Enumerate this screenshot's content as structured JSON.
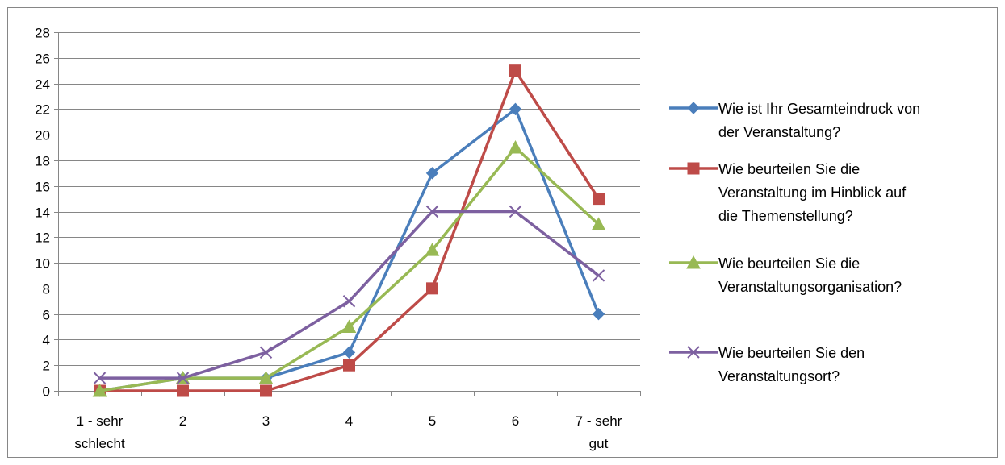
{
  "chart_data": {
    "type": "line",
    "categories": [
      "1 - sehr schlecht",
      "2",
      "3",
      "4",
      "5",
      "6",
      "7 - sehr gut"
    ],
    "category_lines": [
      [
        "1 - sehr",
        "schlecht"
      ],
      [
        "2"
      ],
      [
        "3"
      ],
      [
        "4"
      ],
      [
        "5"
      ],
      [
        "6"
      ],
      [
        "7 - sehr",
        "gut"
      ]
    ],
    "ylim": [
      0,
      28
    ],
    "ytick_step": 2,
    "grid": true,
    "legend_position": "right",
    "series": [
      {
        "name": "Wie ist Ihr Gesamteindruck von der Veranstaltung?",
        "name_lines": [
          "Wie ist Ihr Gesamteindruck von",
          "der Veranstaltung?"
        ],
        "values": [
          0,
          1,
          1,
          3,
          17,
          22,
          6
        ],
        "color": "#4a7ebb",
        "marker": "diamond"
      },
      {
        "name": "Wie beurteilen Sie die Veranstaltung im Hinblick auf die Themenstellung?",
        "name_lines": [
          "Wie beurteilen Sie die",
          "Veranstaltung im Hinblick auf",
          "die Themenstellung?"
        ],
        "values": [
          0,
          0,
          0,
          2,
          8,
          25,
          15
        ],
        "color": "#be4b48",
        "marker": "square"
      },
      {
        "name": "Wie beurteilen Sie die Veranstaltungsorganisation?",
        "name_lines": [
          "Wie beurteilen Sie die",
          "Veranstaltungsorganisation?"
        ],
        "values": [
          0,
          1,
          1,
          5,
          11,
          19,
          13
        ],
        "color": "#98b954",
        "marker": "triangle"
      },
      {
        "name": "Wie beurteilen Sie den Veranstaltungsort?",
        "name_lines": [
          "Wie beurteilen Sie den",
          "Veranstaltungsort?"
        ],
        "values": [
          1,
          1,
          3,
          7,
          14,
          14,
          9
        ],
        "color": "#7d60a0",
        "marker": "x"
      }
    ]
  }
}
